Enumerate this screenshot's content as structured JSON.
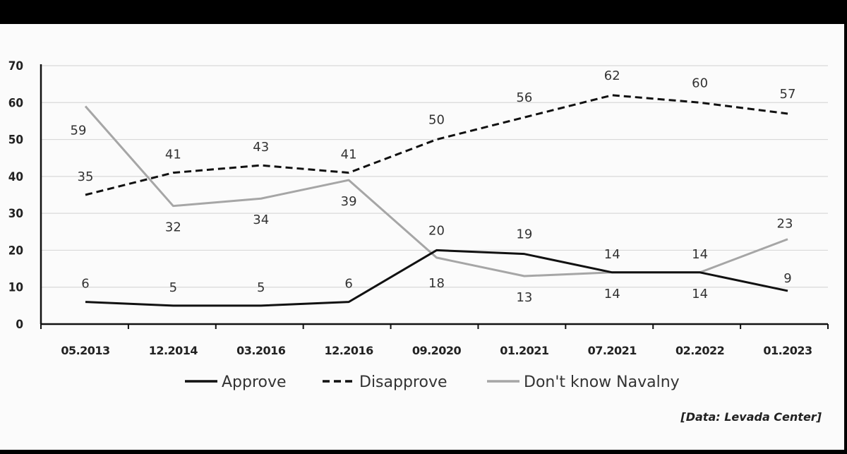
{
  "chart_data": {
    "type": "line",
    "x": [
      "05.2013",
      "12.2014",
      "03.2016",
      "12.2016",
      "09.2020",
      "01.2021",
      "07.2021",
      "02.2022",
      "01.2023"
    ],
    "ylim": [
      0,
      70
    ],
    "yticks": [
      0,
      10,
      20,
      30,
      40,
      50,
      60,
      70
    ],
    "grid": true,
    "legend_position": "bottom",
    "series": [
      {
        "name": "Approve",
        "values": [
          6,
          5,
          5,
          6,
          20,
          19,
          14,
          14,
          9
        ],
        "color": "#111111",
        "style": "solid"
      },
      {
        "name": "Disapprove",
        "values": [
          35,
          41,
          43,
          41,
          50,
          56,
          62,
          60,
          57
        ],
        "color": "#111111",
        "style": "dashed"
      },
      {
        "name": "Don't know Navalny",
        "values": [
          59,
          32,
          34,
          39,
          18,
          13,
          14,
          14,
          23
        ],
        "color": "#a6a6a6",
        "style": "solid"
      }
    ],
    "source": "[Data: Levada Center]"
  }
}
